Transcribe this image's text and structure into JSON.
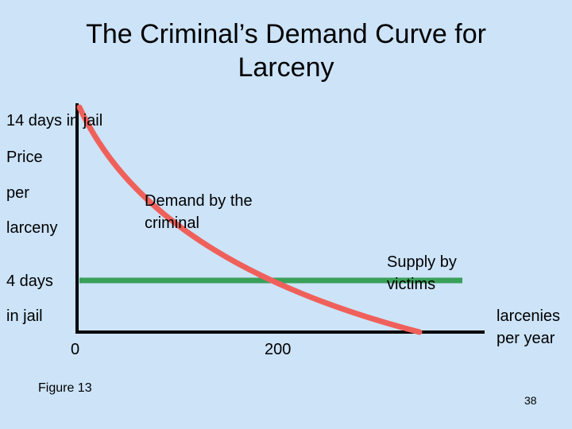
{
  "title": "The Criminal’s Demand Curve for Larceny",
  "y_axis": {
    "top_value": "14 days in jail",
    "label_line_1": "Price",
    "label_line_2": "per",
    "label_line_3": "larceny",
    "lower_value_line_1": "4 days",
    "lower_value_line_2": "in jail"
  },
  "curves": {
    "demand": "Demand by the criminal",
    "supply": "Supply by victims"
  },
  "x_axis": {
    "origin": "0",
    "marker": "200",
    "label": "larcenies per year"
  },
  "figure": "Figure 13",
  "page_number": "38"
}
